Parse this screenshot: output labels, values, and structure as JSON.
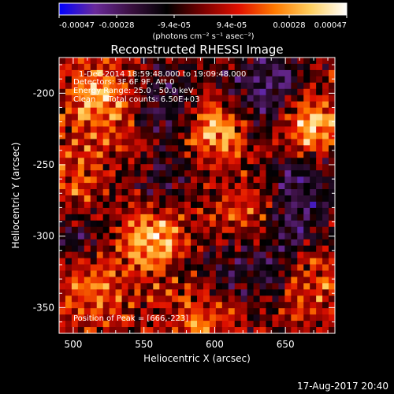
{
  "colorbar": {
    "tick_labels": [
      "-0.00047",
      "-0.00028",
      "-9.4e-05",
      "9.4e-05",
      "0.00028",
      "0.00047"
    ],
    "units_label": "(photons cm⁻² s⁻¹ asec⁻²)",
    "colormap": [
      "#0000ff",
      "#6a2a9a",
      "#3a1040",
      "#000000",
      "#7a0000",
      "#e01000",
      "#ff7a00",
      "#ffd060",
      "#ffffff"
    ]
  },
  "chart_data": {
    "type": "heatmap",
    "title": "Reconstructed RHESSI Image",
    "xlabel": "Heliocentric X (arcsec)",
    "ylabel": "Heliocentric Y (arcsec)",
    "xlim": [
      490,
      685
    ],
    "ylim": [
      -368,
      -175
    ],
    "xticks": [
      500,
      550,
      600,
      650
    ],
    "yticks": [
      -200,
      -250,
      -300,
      -350
    ],
    "vmin": -0.00047,
    "vmax": 0.00047,
    "annotations": [
      "1-Dec-2014 18:59:48.000 to 19:09:48.000",
      "Detectors: 3F 6F 9F, Att 0",
      "Energy Range: 25.0 - 50.0 keV",
      "Clean     Total counts: 6.50E+03"
    ],
    "peak_label": "Position of Peak = [666,-223]",
    "peak_position": [
      666,
      -223
    ],
    "emission_sources": [
      {
        "x": 666,
        "y": -222,
        "amp": 1.0
      },
      {
        "x": 600,
        "y": -225,
        "amp": 0.85
      },
      {
        "x": 520,
        "y": -205,
        "amp": 0.75
      },
      {
        "x": 555,
        "y": -300,
        "amp": 0.85
      },
      {
        "x": 625,
        "y": -285,
        "amp": 0.6
      },
      {
        "x": 510,
        "y": -335,
        "amp": 0.55
      },
      {
        "x": 595,
        "y": -355,
        "amp": 0.55
      },
      {
        "x": 670,
        "y": -330,
        "amp": 0.45
      },
      {
        "x": 500,
        "y": -265,
        "amp": 0.45
      },
      {
        "x": 545,
        "y": -240,
        "amp": 0.4
      }
    ],
    "absorption_regions": [
      {
        "x": 640,
        "y": -200,
        "amp": 0.8
      },
      {
        "x": 565,
        "y": -210,
        "amp": 0.55
      },
      {
        "x": 560,
        "y": -260,
        "amp": 0.5
      },
      {
        "x": 660,
        "y": -265,
        "amp": 0.55
      },
      {
        "x": 645,
        "y": -305,
        "amp": 0.5
      },
      {
        "x": 495,
        "y": -300,
        "amp": 0.45
      },
      {
        "x": 610,
        "y": -330,
        "amp": 0.4
      }
    ]
  },
  "footer": {
    "timestamp": "17-Aug-2017 20:40"
  }
}
